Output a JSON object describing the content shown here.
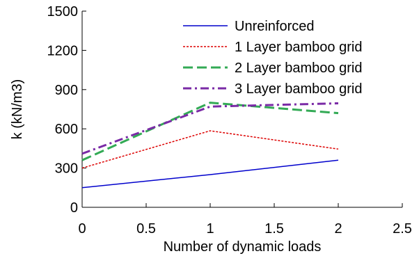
{
  "chart_data": {
    "type": "line",
    "xlabel": "Number of dynamic loads",
    "ylabel": "k (kN/m3)",
    "xlim": [
      0,
      2.5
    ],
    "ylim": [
      0,
      1500
    ],
    "xticks": [
      0,
      0.5,
      1,
      1.5,
      2,
      2.5
    ],
    "xtick_labels": [
      "0",
      "0.5",
      "1",
      "1.5",
      "2",
      "2.5"
    ],
    "yticks": [
      0,
      300,
      600,
      900,
      1200,
      1500
    ],
    "ytick_labels": [
      "0",
      "300",
      "600",
      "900",
      "1200",
      "1500"
    ],
    "grid": false,
    "legend_position": "top-right",
    "series": [
      {
        "name": "Unreinforced",
        "color": "#0000cc",
        "dash": "solid",
        "width": 1.5,
        "x": [
          0,
          1,
          2
        ],
        "y": [
          150,
          250,
          360
        ]
      },
      {
        "name": "1 Layer bamboo grid",
        "color": "#dd0000",
        "dash": "short-dash",
        "width": 1.5,
        "x": [
          0,
          1,
          2
        ],
        "y": [
          300,
          585,
          445
        ]
      },
      {
        "name": "2 Layer bamboo grid",
        "color": "#33aa55",
        "dash": "long-dash",
        "width": 3,
        "x": [
          0,
          1,
          2
        ],
        "y": [
          360,
          800,
          720
        ]
      },
      {
        "name": "3 Layer bamboo grid",
        "color": "#7a2aa6",
        "dash": "dash-dot",
        "width": 3,
        "x": [
          0,
          1,
          2
        ],
        "y": [
          410,
          770,
          795
        ]
      }
    ]
  }
}
